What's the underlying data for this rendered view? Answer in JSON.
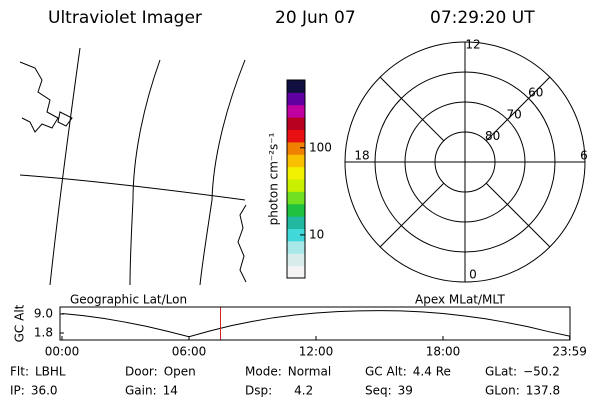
{
  "header": {
    "title": "Ultraviolet Imager",
    "date": "20 Jun 07",
    "time": "07:29:20 UT"
  },
  "colorbar": {
    "label": "photon cm⁻²s⁻¹",
    "scale": "log",
    "clim": [
      3.2,
      600
    ],
    "ticks": [
      10,
      100
    ],
    "colors": [
      "#f4f4f4",
      "#d8ecec",
      "#a8e8e8",
      "#40d8d8",
      "#20b8a0",
      "#20c040",
      "#70e020",
      "#c8f000",
      "#f0f000",
      "#f8c000",
      "#f08000",
      "#e81010",
      "#b80020",
      "#c000a0",
      "#6000a0",
      "#101040"
    ]
  },
  "polar": {
    "lat_min": 50,
    "lat_circles": [
      80,
      70,
      60
    ],
    "mlt_labels": [
      0,
      6,
      12,
      18
    ]
  },
  "chart_data": {
    "type": "line",
    "label_left": "Geographic Lat/Lon",
    "label_right": "Apex MLat/MLT",
    "ylabel": "GC Alt",
    "x": [
      0,
      1,
      2,
      3,
      4,
      5,
      6,
      7,
      8,
      9,
      10,
      11,
      12,
      13,
      14,
      15,
      16,
      17,
      18,
      19,
      20,
      21,
      22,
      23,
      23.983
    ],
    "values": [
      9.2,
      8.4,
      7.3,
      5.9,
      4.3,
      2.4,
      0.4,
      2.6,
      4.6,
      6.2,
      7.6,
      8.6,
      9.4,
      9.9,
      10.2,
      10.3,
      10.2,
      9.8,
      9.2,
      8.3,
      7.2,
      5.8,
      4.2,
      2.3,
      0.6
    ],
    "color": "#000000",
    "marker_x": 7.489,
    "marker_color": "#d02020",
    "xlim": [
      0,
      24
    ],
    "ylim": [
      -0.85,
      11.65
    ],
    "xticks": [
      {
        "value": 0,
        "label": "00:00"
      },
      {
        "value": 6,
        "label": "06:00"
      },
      {
        "value": 12,
        "label": "12:00"
      },
      {
        "value": 18,
        "label": "18:00"
      },
      {
        "value": 23.983,
        "label": "23:59"
      }
    ],
    "yticks": [
      {
        "value": 9,
        "label": "9.0"
      },
      1.8
    ]
  },
  "footer": {
    "rows": [
      [
        {
          "label": "Flt:",
          "value": "LBHL"
        },
        {
          "label": "Door:",
          "value": "Open"
        },
        {
          "label": "Mode:",
          "value": "Normal"
        },
        {
          "label": "GC Alt:",
          "value": "4.4 Re"
        },
        {
          "label": "GLat:",
          "value": "−50.2"
        }
      ],
      [
        {
          "label": "IP:",
          "value": "36.0"
        },
        {
          "label": "Gain:",
          "value": "14"
        },
        {
          "label": "Dsp:",
          "value": "4.2"
        },
        {
          "label": "Seq:",
          "value": "39"
        },
        {
          "label": "GLon:",
          "value": "137.8"
        }
      ]
    ]
  }
}
